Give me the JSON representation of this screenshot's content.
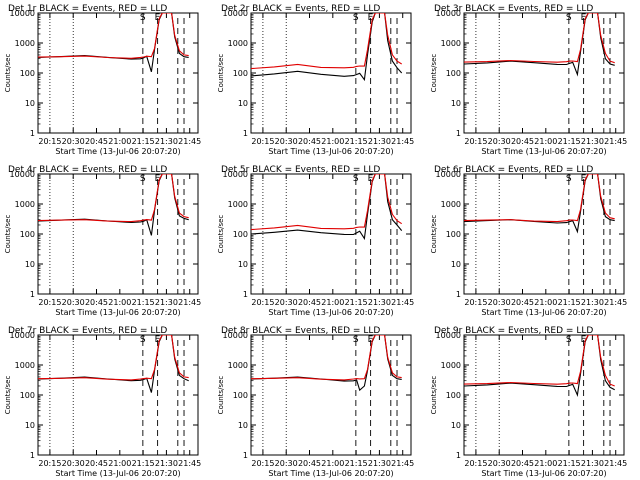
{
  "figure": {
    "x_axis_label": "Start Time (13-Jul-06 20:07:20)",
    "y_axis_label": "Counts/sec",
    "x_tick_labels": [
      "20:15",
      "20:30",
      "20:45",
      "21:00",
      "21:15",
      "21:30",
      "21:45"
    ],
    "y_tick_labels": [
      "1",
      "10",
      "100",
      "1000",
      "10000"
    ],
    "markers": [
      "S",
      "E"
    ],
    "colors": {
      "events": "#000000",
      "lld": "#e00000",
      "background": "#ffffff"
    }
  },
  "chart_data": [
    {
      "type": "line",
      "title": "Det 1r BLACK = Events, RED = LLD",
      "xlabel": "Start Time (13-Jul-06 20:07:20)",
      "ylabel": "Counts/sec",
      "y_scale": "log",
      "ylim": [
        1,
        10000
      ],
      "x_minutes": [
        0,
        15,
        30,
        45,
        60,
        66,
        68,
        70,
        73,
        75,
        78,
        80,
        83,
        86,
        88,
        91,
        94,
        97
      ],
      "series": [
        {
          "name": "Events",
          "color": "#000000",
          "values": [
            330,
            340,
            370,
            330,
            300,
            310,
            320,
            350,
            110,
            600,
            6000,
            10000,
            10000,
            10000,
            1600,
            450,
            350,
            330
          ]
        },
        {
          "name": "LLD",
          "color": "#e00000",
          "values": [
            340,
            350,
            380,
            340,
            310,
            320,
            330,
            360,
            350,
            650,
            6500,
            10000,
            10000,
            10000,
            1800,
            550,
            400,
            380
          ]
        }
      ]
    },
    {
      "type": "line",
      "title": "Det 2r BLACK = Events, RED = LLD",
      "xlabel": "Start Time (13-Jul-06 20:07:20)",
      "ylabel": "Counts/sec",
      "y_scale": "log",
      "ylim": [
        1,
        10000
      ],
      "x_minutes": [
        0,
        15,
        30,
        45,
        60,
        66,
        68,
        70,
        73,
        75,
        78,
        80,
        83,
        86,
        88,
        91,
        94,
        97
      ],
      "series": [
        {
          "name": "Events",
          "color": "#000000",
          "values": [
            80,
            90,
            110,
            90,
            80,
            85,
            90,
            95,
            60,
            400,
            5000,
            10000,
            10000,
            10000,
            1200,
            250,
            150,
            100
          ]
        },
        {
          "name": "LLD",
          "color": "#e00000",
          "values": [
            140,
            160,
            200,
            160,
            150,
            150,
            160,
            170,
            170,
            600,
            6000,
            10000,
            10000,
            10000,
            1800,
            400,
            250,
            200
          ]
        }
      ]
    },
    {
      "type": "line",
      "title": "Det 3r BLACK = Events, RED = LLD",
      "xlabel": "Start Time (13-Jul-06 20:07:20)",
      "ylabel": "Counts/sec",
      "y_scale": "log",
      "ylim": [
        1,
        10000
      ],
      "x_minutes": [
        0,
        15,
        30,
        45,
        60,
        66,
        68,
        70,
        73,
        75,
        78,
        80,
        83,
        86,
        88,
        91,
        94,
        97
      ],
      "series": [
        {
          "name": "Events",
          "color": "#000000",
          "values": [
            200,
            210,
            240,
            220,
            200,
            200,
            210,
            220,
            90,
            500,
            6000,
            10000,
            10000,
            10000,
            1500,
            300,
            200,
            180
          ]
        },
        {
          "name": "LLD",
          "color": "#e00000",
          "values": [
            230,
            240,
            270,
            250,
            230,
            230,
            240,
            250,
            240,
            600,
            6500,
            10000,
            10000,
            10000,
            1800,
            450,
            250,
            220
          ]
        }
      ]
    },
    {
      "type": "line",
      "title": "Det 4r BLACK = Events, RED = LLD",
      "xlabel": "Start Time (13-Jul-06 20:07:20)",
      "ylabel": "Counts/sec",
      "y_scale": "log",
      "ylim": [
        1,
        10000
      ],
      "x_minutes": [
        0,
        15,
        30,
        45,
        60,
        66,
        68,
        70,
        73,
        75,
        78,
        80,
        83,
        86,
        88,
        91,
        94,
        97
      ],
      "series": [
        {
          "name": "Events",
          "color": "#000000",
          "values": [
            270,
            280,
            300,
            270,
            250,
            260,
            270,
            290,
            90,
            600,
            6000,
            10000,
            10000,
            10000,
            1600,
            400,
            330,
            300
          ]
        },
        {
          "name": "LLD",
          "color": "#e00000",
          "values": [
            280,
            290,
            310,
            280,
            260,
            270,
            280,
            300,
            290,
            650,
            6500,
            10000,
            10000,
            10000,
            1800,
            500,
            380,
            350
          ]
        }
      ]
    },
    {
      "type": "line",
      "title": "Det 5r BLACK = Events, RED = LLD",
      "xlabel": "Start Time (13-Jul-06 20:07:20)",
      "ylabel": "Counts/sec",
      "y_scale": "log",
      "ylim": [
        1,
        10000
      ],
      "x_minutes": [
        0,
        15,
        30,
        45,
        60,
        66,
        68,
        70,
        73,
        75,
        78,
        80,
        83,
        86,
        88,
        91,
        94,
        97
      ],
      "series": [
        {
          "name": "Events",
          "color": "#000000",
          "values": [
            100,
            110,
            130,
            110,
            100,
            100,
            110,
            120,
            70,
            450,
            5500,
            10000,
            10000,
            10000,
            1200,
            300,
            200,
            130
          ]
        },
        {
          "name": "LLD",
          "color": "#e00000",
          "values": [
            140,
            160,
            200,
            160,
            150,
            150,
            160,
            170,
            170,
            600,
            6000,
            10000,
            10000,
            10000,
            1700,
            450,
            280,
            220
          ]
        }
      ]
    },
    {
      "type": "line",
      "title": "Det 6r BLACK = Events, RED = LLD",
      "xlabel": "Start Time (13-Jul-06 20:07:20)",
      "ylabel": "Counts/sec",
      "y_scale": "log",
      "ylim": [
        1,
        10000
      ],
      "x_minutes": [
        0,
        15,
        30,
        45,
        60,
        66,
        68,
        70,
        73,
        75,
        78,
        80,
        83,
        86,
        88,
        91,
        94,
        97
      ],
      "series": [
        {
          "name": "Events",
          "color": "#000000",
          "values": [
            260,
            270,
            290,
            260,
            240,
            250,
            260,
            270,
            120,
            550,
            6000,
            10000,
            10000,
            10000,
            1500,
            380,
            300,
            280
          ]
        },
        {
          "name": "LLD",
          "color": "#e00000",
          "values": [
            280,
            290,
            310,
            280,
            260,
            270,
            280,
            290,
            280,
            650,
            6500,
            10000,
            10000,
            10000,
            1800,
            500,
            350,
            320
          ]
        }
      ]
    },
    {
      "type": "line",
      "title": "Det 7r BLACK = Events, RED = LLD",
      "xlabel": "Start Time (13-Jul-06 20:07:20)",
      "ylabel": "Counts/sec",
      "y_scale": "log",
      "ylim": [
        1,
        10000
      ],
      "x_minutes": [
        0,
        15,
        30,
        45,
        60,
        66,
        68,
        70,
        73,
        75,
        78,
        80,
        83,
        86,
        88,
        91,
        94,
        97
      ],
      "series": [
        {
          "name": "Events",
          "color": "#000000",
          "values": [
            340,
            350,
            380,
            340,
            310,
            320,
            330,
            350,
            120,
            650,
            6000,
            10000,
            10000,
            10000,
            1600,
            450,
            350,
            300
          ]
        },
        {
          "name": "LLD",
          "color": "#e00000",
          "values": [
            350,
            360,
            390,
            350,
            320,
            330,
            340,
            360,
            350,
            700,
            6500,
            10000,
            10000,
            10000,
            1800,
            550,
            400,
            380
          ]
        }
      ]
    },
    {
      "type": "line",
      "title": "Det 8r BLACK = Events, RED = LLD",
      "xlabel": "Start Time (13-Jul-06 20:07:20)",
      "ylabel": "Counts/sec",
      "y_scale": "log",
      "ylim": [
        1,
        10000
      ],
      "x_minutes": [
        0,
        15,
        30,
        45,
        60,
        66,
        68,
        70,
        73,
        75,
        78,
        80,
        83,
        86,
        88,
        91,
        94,
        97
      ],
      "series": [
        {
          "name": "Events",
          "color": "#000000",
          "values": [
            340,
            350,
            380,
            340,
            300,
            310,
            320,
            140,
            200,
            650,
            6000,
            10000,
            10000,
            10000,
            1600,
            450,
            350,
            330
          ]
        },
        {
          "name": "LLD",
          "color": "#e00000",
          "values": [
            350,
            360,
            390,
            350,
            320,
            330,
            340,
            340,
            350,
            700,
            6500,
            10000,
            10000,
            10000,
            1800,
            550,
            400,
            380
          ]
        }
      ]
    },
    {
      "type": "line",
      "title": "Det 9r BLACK = Events, RED = LLD",
      "xlabel": "Start Time (13-Jul-06 20:07:20)",
      "ylabel": "Counts/sec",
      "y_scale": "log",
      "ylim": [
        1,
        10000
      ],
      "x_minutes": [
        0,
        15,
        30,
        45,
        60,
        66,
        68,
        70,
        73,
        75,
        78,
        80,
        83,
        86,
        88,
        91,
        94,
        97
      ],
      "series": [
        {
          "name": "Events",
          "color": "#000000",
          "values": [
            200,
            210,
            240,
            220,
            200,
            200,
            210,
            220,
            100,
            500,
            6000,
            10000,
            10000,
            10000,
            1500,
            300,
            180,
            150
          ]
        },
        {
          "name": "LLD",
          "color": "#e00000",
          "values": [
            230,
            240,
            270,
            250,
            230,
            230,
            240,
            250,
            240,
            600,
            6500,
            10000,
            10000,
            10000,
            1800,
            450,
            230,
            200
          ]
        }
      ]
    }
  ]
}
